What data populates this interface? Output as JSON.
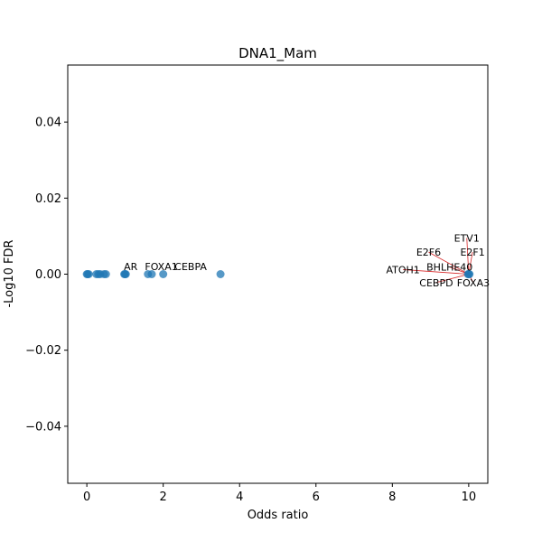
{
  "chart_data": {
    "type": "scatter",
    "title": "DNA1_Mam",
    "xlabel": "Odds ratio",
    "ylabel": "-Log10 FDR",
    "xlim": [
      -0.5,
      10.5
    ],
    "ylim": [
      -0.055,
      0.055
    ],
    "x_ticks": [
      0,
      2,
      4,
      6,
      8,
      10
    ],
    "x_tick_labels": [
      "0",
      "2",
      "4",
      "6",
      "8",
      "10"
    ],
    "y_ticks": [
      -0.04,
      -0.02,
      0.0,
      0.02,
      0.04
    ],
    "y_tick_labels": [
      "−0.04",
      "−0.02",
      "0.00",
      "0.02",
      "0.04"
    ],
    "grid": false,
    "marker_color": "#1f77b4",
    "annotation_line_color": "#d62728",
    "series": [
      {
        "points": [
          {
            "x": 0,
            "y": 0
          },
          {
            "x": 0.02,
            "y": 0
          },
          {
            "x": 0.05,
            "y": 0
          },
          {
            "x": 0.25,
            "y": 0
          },
          {
            "x": 0.3,
            "y": 0
          },
          {
            "x": 0.35,
            "y": 0
          },
          {
            "x": 0.45,
            "y": 0
          },
          {
            "x": 0.5,
            "y": 0
          },
          {
            "x": 0.98,
            "y": 0
          },
          {
            "x": 1.0,
            "y": 0
          },
          {
            "x": 1.02,
            "y": 0
          },
          {
            "x": 1.6,
            "y": 0
          },
          {
            "x": 1.7,
            "y": 0
          },
          {
            "x": 2.0,
            "y": 0
          },
          {
            "x": 3.5,
            "y": 0
          },
          {
            "x": 9.98,
            "y": 0
          },
          {
            "x": 10.0,
            "y": 0
          },
          {
            "x": 10.02,
            "y": 0
          }
        ]
      }
    ],
    "annotations": [
      {
        "text": "AR",
        "x": 1.0,
        "y": 0.0,
        "tx": 1.15,
        "ty": 0.002,
        "arrow": false
      },
      {
        "text": "FOXA1",
        "x": 2.0,
        "y": 0.0,
        "tx": 1.95,
        "ty": 0.002,
        "arrow": false
      },
      {
        "text": "CEBPA",
        "x": 3.5,
        "y": 0.0,
        "tx": 2.72,
        "ty": 0.002,
        "arrow": false
      },
      {
        "text": "ETV1",
        "x": 10.0,
        "y": 0.0,
        "tx": 9.95,
        "ty": 0.0095,
        "arrow": true
      },
      {
        "text": "E2F1",
        "x": 10.0,
        "y": 0.0,
        "tx": 10.1,
        "ty": 0.0058,
        "arrow": true
      },
      {
        "text": "E2F6",
        "x": 10.0,
        "y": 0.0,
        "tx": 8.95,
        "ty": 0.0058,
        "arrow": true
      },
      {
        "text": "BHLHE40",
        "x": 10.0,
        "y": 0.0,
        "tx": 9.5,
        "ty": 0.0019,
        "arrow": true
      },
      {
        "text": "ATOH1",
        "x": 10.0,
        "y": 0.0,
        "tx": 8.28,
        "ty": 0.0012,
        "arrow": true
      },
      {
        "text": "CEBPD",
        "x": 10.0,
        "y": 0.0,
        "tx": 9.15,
        "ty": -0.0022,
        "arrow": true
      },
      {
        "text": "FOXA3",
        "x": 10.0,
        "y": 0.0,
        "tx": 10.12,
        "ty": -0.0022,
        "arrow": true
      }
    ]
  }
}
